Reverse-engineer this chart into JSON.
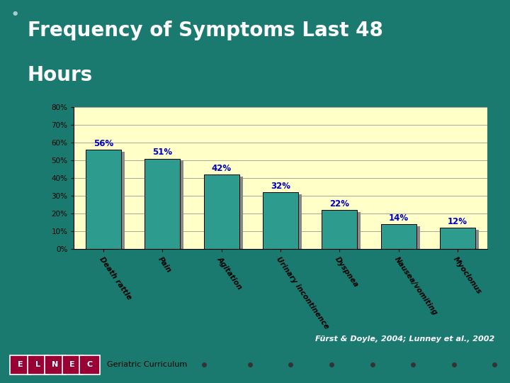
{
  "title_line1": "Frequency of Symptoms Last 48",
  "title_line2": "Hours",
  "categories": [
    "Death rattle",
    "Pain",
    "Agitation",
    "Urinary incontinence",
    "Dyspnea",
    "Nausea/vomiting",
    "Myoclonus"
  ],
  "values": [
    56,
    51,
    42,
    32,
    22,
    14,
    12
  ],
  "bar_color": "#2E9B8F",
  "bar_shadow_color": "#888888",
  "bar_edge_color": "#000000",
  "label_color": "#0000CC",
  "bg_outer": "#1A7A70",
  "bg_title": "#990033",
  "bg_chart_area": "#FFFFC8",
  "title_text_color": "#FFFFFF",
  "ylabel_ticks": [
    "0%",
    "10%",
    "20%",
    "30%",
    "40%",
    "50%",
    "60%",
    "70%",
    "80%"
  ],
  "ytick_vals": [
    0,
    10,
    20,
    30,
    40,
    50,
    60,
    70,
    80
  ],
  "ylim": [
    0,
    80
  ],
  "footer_text": "Fürst & Doyle, 2004; Lunney et al., 2002",
  "footer_color": "#FFFFFF",
  "elnec_letters": [
    "E",
    "L",
    "N",
    "E",
    "C"
  ],
  "geriatric_text": "Geriatric Curriculum"
}
